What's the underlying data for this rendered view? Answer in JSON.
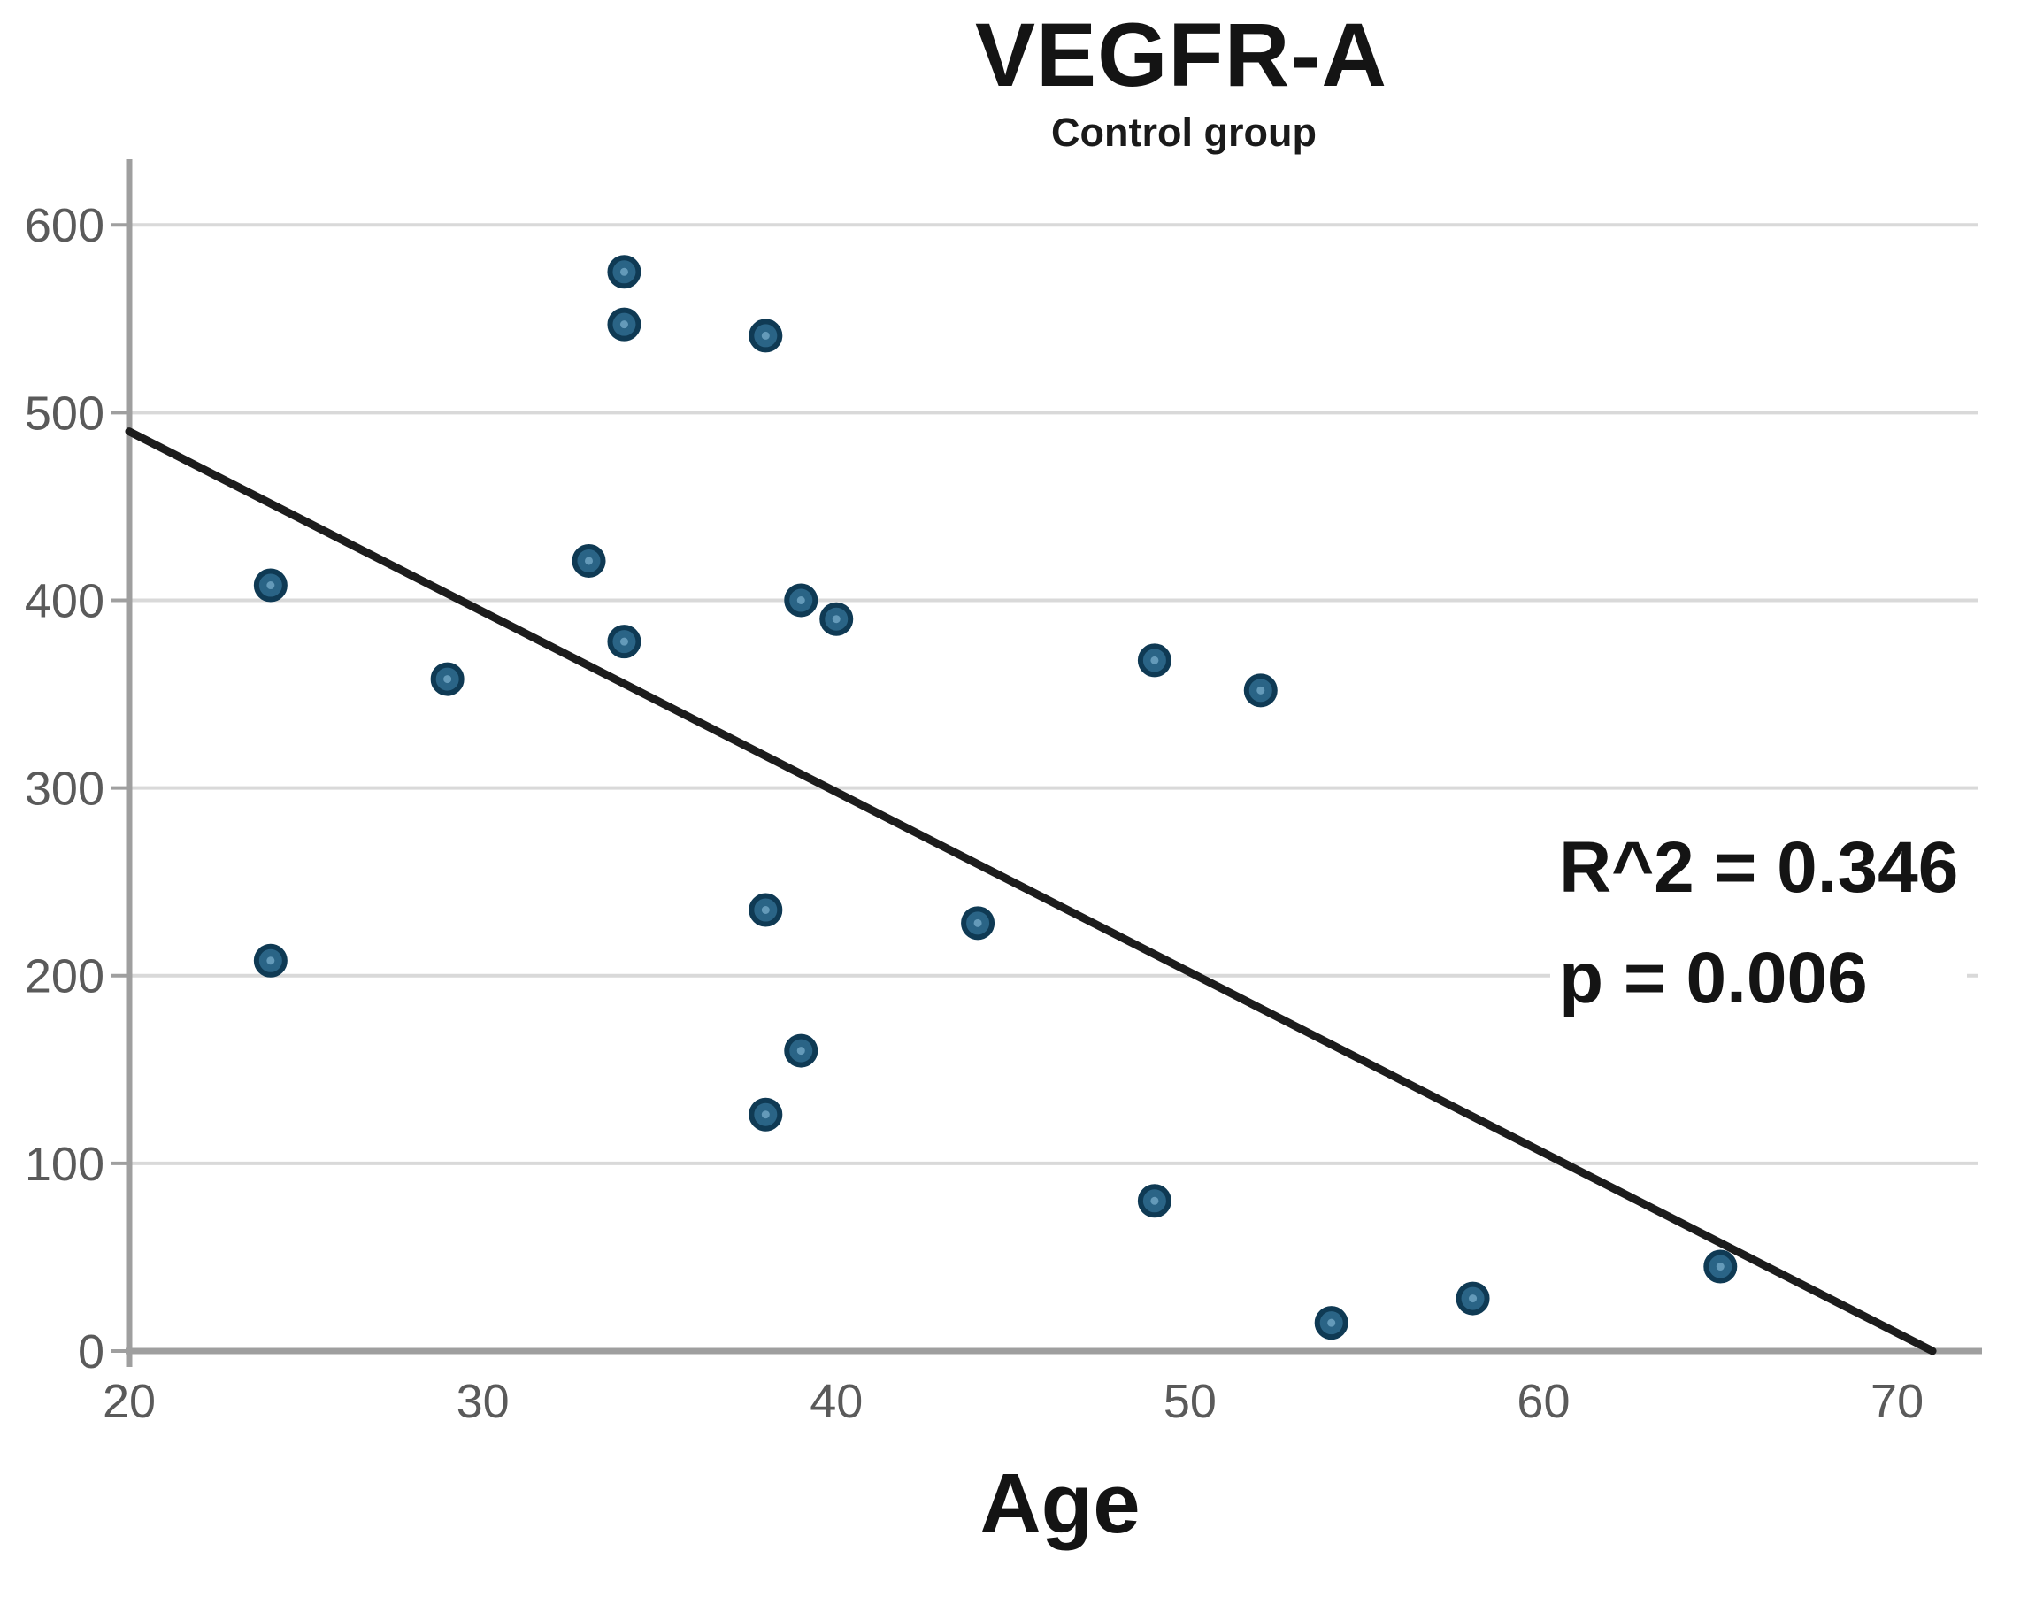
{
  "chart_data": {
    "type": "scatter",
    "title": "VEGFR-A",
    "subtitle": "Control group",
    "xlabel": "Age",
    "ylabel": "",
    "xlim": [
      20,
      72.4
    ],
    "ylim": [
      0,
      635
    ],
    "x_ticks": [
      20,
      30,
      40,
      50,
      60,
      70
    ],
    "y_ticks": [
      0,
      100,
      200,
      300,
      400,
      500,
      600
    ],
    "grid": "horizontal-only",
    "legend": "none",
    "series": [
      {
        "name": "Control group",
        "points": [
          [
            24,
            408
          ],
          [
            24,
            208
          ],
          [
            29,
            358
          ],
          [
            33,
            421
          ],
          [
            34,
            575
          ],
          [
            34,
            547
          ],
          [
            34,
            378
          ],
          [
            38,
            541
          ],
          [
            38,
            235
          ],
          [
            38,
            126
          ],
          [
            39,
            400
          ],
          [
            39,
            160
          ],
          [
            40,
            390
          ],
          [
            44,
            228
          ],
          [
            49,
            368
          ],
          [
            49,
            80
          ],
          [
            52,
            352
          ],
          [
            54,
            15
          ],
          [
            58,
            28
          ],
          [
            65,
            45
          ]
        ]
      }
    ],
    "fit_line": {
      "x1": 20,
      "y1": 490,
      "x2": 71,
      "y2": 0
    },
    "annotations": [
      "R^2 = 0.346",
      "p = 0.006"
    ],
    "r_squared": 0.346,
    "p_value": 0.006
  },
  "colors": {
    "point_fill": "#2a6486",
    "point_stroke": "#0f3a54",
    "point_center": "#6ea3c2",
    "fit_line": "#1c1c1c",
    "grid": "#d9d9d9",
    "axis": "#9f9f9f",
    "tick_label": "#5a5a5a",
    "text": "#141414",
    "background": "#ffffff"
  }
}
